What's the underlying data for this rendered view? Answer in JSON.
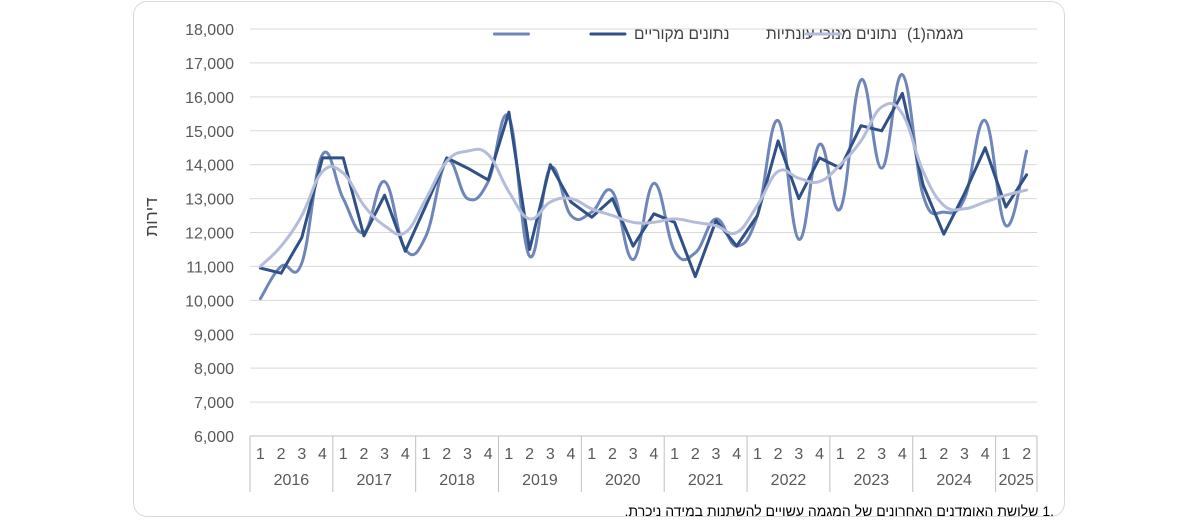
{
  "chart_data": {
    "type": "line",
    "ylabel": "דירות",
    "ylim": [
      6000,
      18000
    ],
    "y_ticks": [
      "6,000",
      "7,000",
      "8,000",
      "9,000",
      "10,000",
      "11,000",
      "12,000",
      "13,000",
      "14,000",
      "15,000",
      "16,000",
      "17,000",
      "18,000"
    ],
    "years": [
      "2016",
      "2017",
      "2018",
      "2019",
      "2020",
      "2021",
      "2022",
      "2023",
      "2024",
      "2025"
    ],
    "quarters": [
      "1",
      "2",
      "3",
      "4",
      "1",
      "2",
      "3",
      "4",
      "1",
      "2",
      "3",
      "4",
      "1",
      "2",
      "3",
      "4",
      "1",
      "2",
      "3",
      "4",
      "1",
      "2",
      "3",
      "4",
      "1",
      "2",
      "3",
      "4",
      "1",
      "2",
      "3",
      "4",
      "1",
      "2",
      "3",
      "4",
      "1",
      "2"
    ],
    "legend_position": "top",
    "series": [
      {
        "name": "נתונים מקוריים",
        "color": "#6f86b9",
        "width": 3,
        "smooth": true,
        "values": [
          10050,
          11000,
          11100,
          14300,
          13000,
          12000,
          13500,
          11500,
          11900,
          14100,
          13000,
          13500,
          15400,
          11300,
          13900,
          12500,
          12600,
          13200,
          11200,
          13450,
          11450,
          11400,
          12400,
          11600,
          12500,
          15300,
          11800,
          14600,
          12700,
          16500,
          13900,
          16650,
          13100,
          12600,
          13000,
          15300,
          12200,
          14400
        ]
      },
      {
        "name": "נתונים מנוכי עונתיות",
        "color": "#2f5187",
        "width": 3,
        "smooth": false,
        "values": [
          10950,
          10800,
          11850,
          14200,
          14200,
          11900,
          13100,
          11450,
          12800,
          14200,
          13900,
          13550,
          15550,
          11500,
          14000,
          12900,
          12450,
          13000,
          11600,
          12550,
          12300,
          10700,
          12350,
          11600,
          12500,
          14700,
          13000,
          14200,
          13900,
          15150,
          15000,
          16100,
          13400,
          11950,
          13150,
          14500,
          12750,
          13700
        ]
      },
      {
        "name": "מגמה(1)",
        "color": "#b4bcdc",
        "width": 3,
        "smooth": true,
        "values": [
          11000,
          11600,
          12500,
          13800,
          13750,
          12800,
          12200,
          12000,
          13000,
          14100,
          14400,
          14300,
          13200,
          12400,
          12900,
          13000,
          12700,
          12500,
          12300,
          12300,
          12400,
          12300,
          12200,
          12000,
          12800,
          13800,
          13600,
          13500,
          14000,
          14700,
          15700,
          15500,
          13800,
          12800,
          12700,
          12900,
          13100,
          13250
        ]
      }
    ]
  },
  "footnote": ".1 שלושת האומדנים האחרונים של המגמה עשויים להשתנות במידה ניכרת."
}
